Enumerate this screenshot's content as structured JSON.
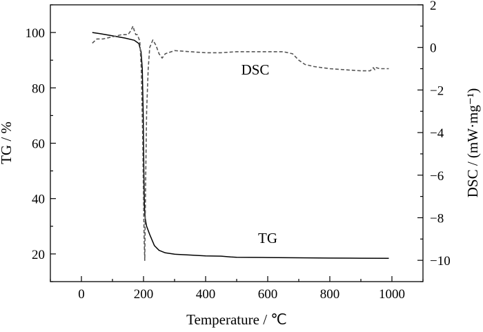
{
  "chart_data": {
    "type": "line",
    "title": "",
    "xlabel": "Temperature / ℃",
    "ylabel_left": "TG / %",
    "ylabel_right": "DSC / (mW·mg⁻¹)",
    "xlim": [
      -100,
      1100
    ],
    "ylim_left": [
      10,
      110
    ],
    "ylim_right": [
      -11,
      2
    ],
    "xticks": [
      0,
      200,
      400,
      600,
      800,
      1000
    ],
    "yticks_left": [
      20,
      40,
      60,
      80,
      100
    ],
    "yticks_right": [
      2,
      0,
      -2,
      -4,
      -6,
      -8,
      -10
    ],
    "xtick_labels": [
      "0",
      "200",
      "400",
      "600",
      "800",
      "1000"
    ],
    "ytick_left_labels": [
      "20",
      "40",
      "60",
      "80",
      "100"
    ],
    "ytick_right_labels": [
      "2",
      "0",
      "−2",
      "−4",
      "−6",
      "−8",
      "−10"
    ],
    "grid": false,
    "series": [
      {
        "name": "TG",
        "axis": "left",
        "style": "solid",
        "color": "#000000",
        "x": [
          35,
          60,
          100,
          140,
          170,
          185,
          192,
          196,
          199,
          201,
          203,
          205,
          210,
          220,
          235,
          250,
          270,
          300,
          350,
          400,
          450,
          480,
          500,
          600,
          700,
          800,
          900,
          990
        ],
        "y": [
          100,
          99.6,
          98.8,
          98.0,
          97.2,
          96.0,
          93.0,
          87.0,
          70.0,
          50.0,
          37.0,
          33.0,
          30.0,
          27.0,
          23.0,
          21.3,
          20.4,
          19.9,
          19.6,
          19.3,
          19.2,
          18.9,
          18.8,
          18.7,
          18.6,
          18.5,
          18.45,
          18.4
        ]
      },
      {
        "name": "DSC",
        "axis": "right",
        "style": "dashed",
        "color": "#555555",
        "x": [
          35,
          50,
          70,
          100,
          130,
          150,
          160,
          166,
          170,
          175,
          180,
          188,
          193,
          197,
          200,
          202,
          204,
          207,
          210,
          215,
          220,
          230,
          240,
          250,
          260,
          270,
          300,
          350,
          400,
          450,
          500,
          550,
          600,
          650,
          680,
          700,
          720,
          750,
          800,
          850,
          900,
          930,
          940,
          945,
          950,
          960,
          990
        ],
        "y": [
          0.2,
          0.4,
          0.4,
          0.5,
          0.6,
          0.6,
          0.8,
          1.0,
          0.8,
          0.6,
          0.6,
          0.3,
          -1.0,
          -4.0,
          -7.0,
          -9.0,
          -10.0,
          -6.0,
          -3.0,
          -1.0,
          0.0,
          0.35,
          0.1,
          -0.3,
          -0.5,
          -0.3,
          -0.15,
          -0.2,
          -0.25,
          -0.25,
          -0.2,
          -0.2,
          -0.2,
          -0.2,
          -0.3,
          -0.6,
          -0.8,
          -0.9,
          -1.0,
          -1.05,
          -1.1,
          -1.1,
          -0.95,
          -1.05,
          -0.95,
          -1.0,
          -1.0
        ]
      }
    ],
    "annotations": [
      {
        "text": "DSC",
        "x": 560,
        "y_left": 84.8
      },
      {
        "text": "TG",
        "x": 600,
        "y_left": 24
      }
    ]
  }
}
